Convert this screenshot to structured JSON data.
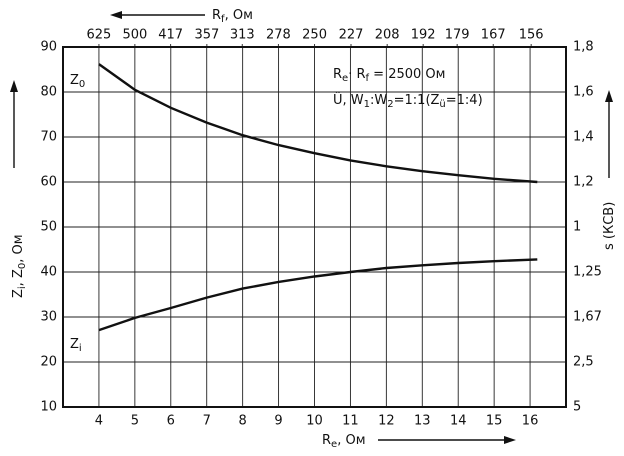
{
  "chart_data": {
    "type": "line",
    "x_label": [
      "R",
      "e",
      ", Ом"
    ],
    "x2_label": [
      "R",
      "f",
      ", Ом"
    ],
    "y_label": [
      "Z",
      "i",
      ", Z",
      "0",
      ", Ом"
    ],
    "y2_label": [
      "s (КСВ)"
    ],
    "annotations": [
      [
        "R",
        "e",
        "· R",
        "f",
        " = 2500 Ом"
      ],
      [
        "Ü, W",
        "1",
        ":W",
        "2",
        "=1:1(Z",
        "ü",
        "=1:4)"
      ]
    ],
    "x": [
      4,
      5,
      6,
      7,
      8,
      9,
      10,
      11,
      12,
      13,
      14,
      15,
      16.2
    ],
    "series": [
      {
        "label": [
          "Z",
          "0"
        ],
        "color": "#111111",
        "values": [
          86.2,
          80.5,
          76.5,
          73.2,
          70.4,
          68.2,
          66.4,
          64.8,
          63.5,
          62.4,
          61.5,
          60.7,
          60.0
        ]
      },
      {
        "label": [
          "Z",
          "i"
        ],
        "color": "#111111",
        "values": [
          27.1,
          29.8,
          32.0,
          34.3,
          36.3,
          37.8,
          39.0,
          40.0,
          40.9,
          41.5,
          42.0,
          42.4,
          42.8
        ]
      }
    ],
    "xlim": [
      3,
      17
    ],
    "xticks": [
      4,
      5,
      6,
      7,
      8,
      9,
      10,
      11,
      12,
      13,
      14,
      15,
      16
    ],
    "x2scale": "reciprocal",
    "x2lim": [
      833.3,
      147.1
    ],
    "x2ticks": [
      625,
      500,
      417,
      357,
      313,
      278,
      250,
      227,
      208,
      192,
      179,
      167,
      156
    ],
    "ylim": [
      10,
      90
    ],
    "yticks": [
      10,
      20,
      30,
      40,
      50,
      60,
      70,
      80,
      90
    ],
    "y2ticks": [
      5,
      {
        "value": 2.5,
        "label": "2,5"
      },
      {
        "value": 1.67,
        "label": "1,67"
      },
      {
        "value": 1.25,
        "label": "1,25"
      },
      1,
      {
        "value": 1.2,
        "label": "1,2"
      },
      {
        "value": 1.4,
        "label": "1,4"
      },
      {
        "value": 1.6,
        "label": "1,6"
      },
      {
        "value": 1.8,
        "label": "1,8"
      }
    ],
    "grid": true
  }
}
